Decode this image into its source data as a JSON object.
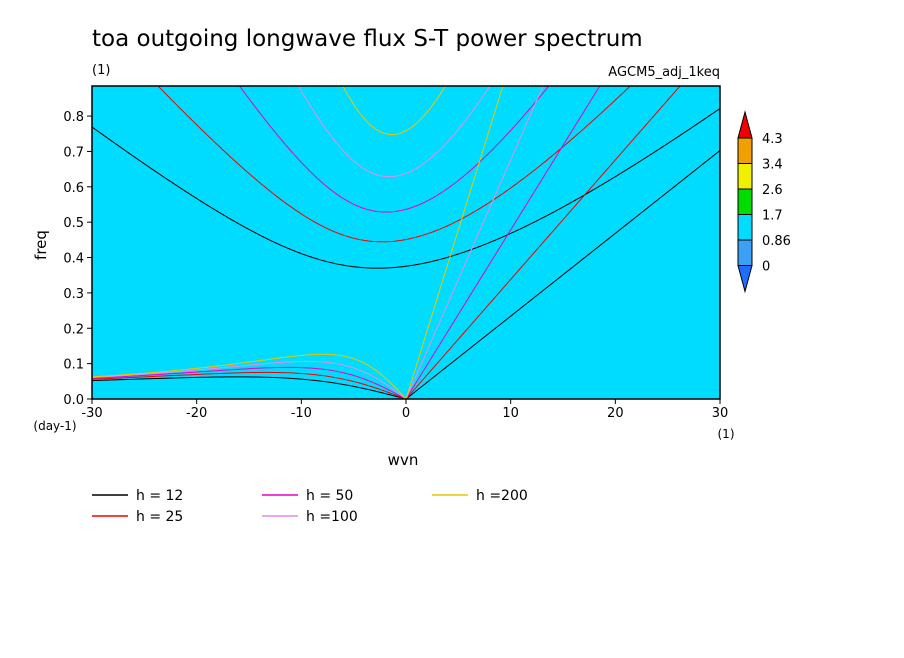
{
  "chart_data": {
    "type": "spectrum",
    "title": "toa outgoing longwave flux S-T power spectrum",
    "subtitle": "(1)",
    "run_label": "AGCM5_adj_1keq",
    "x_label": "wvn",
    "y_label": "freq",
    "y_unit": "(day-1)",
    "x_unit": "(1)",
    "xlim": [
      -30,
      30
    ],
    "ylim": [
      0,
      0.885
    ],
    "xticks": [
      -30,
      -20,
      -10,
      0,
      10,
      20,
      30
    ],
    "yticks": [
      {
        "value": 0,
        "label": "0.0"
      },
      0.1,
      0.2,
      0.3,
      0.4,
      0.5,
      0.6,
      0.7,
      0.8
    ],
    "colorbar": {
      "levels": [
        0,
        0.86,
        1.7,
        2.6,
        3.4,
        4.3
      ],
      "colors": [
        "#1e6eff",
        "#3ca0f5",
        "#00dcff",
        "#00dc00",
        "#f0f000",
        "#f0a000",
        "#f00000"
      ],
      "field_color": "#00dcff"
    },
    "series": [
      {
        "name": "h = 12",
        "color": "#000000",
        "h": 12
      },
      {
        "name": "h = 25",
        "color": "#f00000",
        "h": 25
      },
      {
        "name": "h = 50",
        "color": "#e600c8",
        "h": 50
      },
      {
        "name": "h =100",
        "color": "#e68ce6",
        "h": 100
      },
      {
        "name": "h =200",
        "color": "#e6c800",
        "h": 200
      }
    ]
  }
}
